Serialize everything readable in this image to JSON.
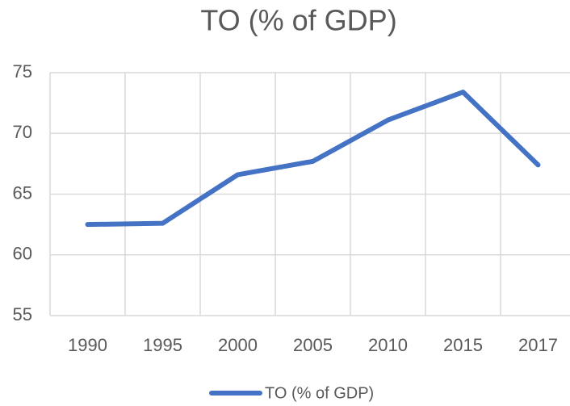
{
  "chart_data": {
    "type": "line",
    "title": "TO (% of GDP)",
    "categories": [
      "1990",
      "1995",
      "2000",
      "2005",
      "2010",
      "2015",
      "2017"
    ],
    "series": [
      {
        "name": "TO (% of GDP)",
        "color": "#4472c4",
        "values": [
          62.5,
          62.6,
          66.6,
          67.7,
          71.1,
          73.4,
          67.4
        ]
      }
    ],
    "ylim": [
      55,
      75
    ],
    "yticks": [
      55,
      60,
      65,
      70,
      75
    ],
    "grid": true,
    "legend": "bottom"
  }
}
